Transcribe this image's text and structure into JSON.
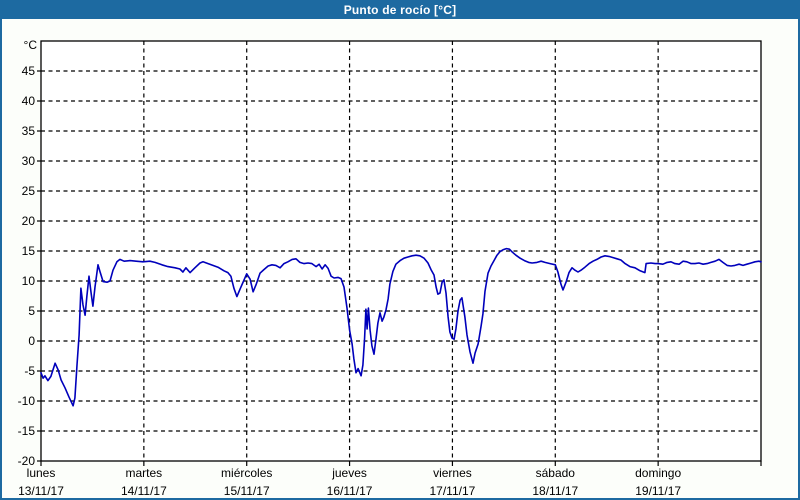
{
  "window": {
    "title": "Punto de rocío [°C]"
  },
  "colors": {
    "title_bar_bg": "#1d6aa1",
    "title_text": "#ffffff",
    "window_border": "#1d6aa1",
    "chart_bg": "#fcfefa",
    "plot_bg": "#ffffff",
    "line": "#0000bb",
    "grid": "#000000",
    "text": "#000000"
  },
  "chart_data": {
    "type": "line",
    "title": "Punto de rocío [°C]",
    "ylabel": "°C",
    "ylim": [
      -20,
      50
    ],
    "yticks": [
      45,
      40,
      35,
      30,
      25,
      20,
      15,
      10,
      5,
      0,
      -5,
      -10,
      -15,
      -20
    ],
    "grid": "dashed",
    "x_unit": "hours_since_monday_00h",
    "xlim": [
      0,
      168
    ],
    "x_axis_ticks_hours": [
      0,
      24,
      48,
      72,
      96,
      120,
      144,
      168
    ],
    "x_day_labels": [
      {
        "hour": 0,
        "day": "lunes",
        "date": "13/11/17"
      },
      {
        "hour": 24,
        "day": "martes",
        "date": "14/11/17"
      },
      {
        "hour": 48,
        "day": "miércoles",
        "date": "15/11/17"
      },
      {
        "hour": 72,
        "day": "jueves",
        "date": "16/11/17"
      },
      {
        "hour": 96,
        "day": "viernes",
        "date": "17/11/17"
      },
      {
        "hour": 120,
        "day": "sábado",
        "date": "18/11/17"
      },
      {
        "hour": 144,
        "day": "domingo",
        "date": "19/11/17"
      }
    ],
    "series": [
      {
        "name": "Punto de rocío",
        "color": "#0000bb",
        "points": [
          [
            0,
            -5.3
          ],
          [
            0.5,
            -6.2
          ],
          [
            0.9,
            -5.8
          ],
          [
            1.6,
            -6.6
          ],
          [
            2.3,
            -5.9
          ],
          [
            3.3,
            -3.7
          ],
          [
            4,
            -4.8
          ],
          [
            4.7,
            -6.5
          ],
          [
            5.6,
            -7.8
          ],
          [
            6.5,
            -9.3
          ],
          [
            7.5,
            -10.8
          ],
          [
            7.9,
            -9.5
          ],
          [
            8.4,
            -4
          ],
          [
            8.9,
            1
          ],
          [
            9.3,
            8.8
          ],
          [
            9.8,
            6
          ],
          [
            10.3,
            4.3
          ],
          [
            10.7,
            7.5
          ],
          [
            11.2,
            10.8
          ],
          [
            11.7,
            8
          ],
          [
            12.1,
            5.8
          ],
          [
            12.6,
            9
          ],
          [
            13.3,
            12.7
          ],
          [
            13.8,
            11.5
          ],
          [
            14.5,
            9.9
          ],
          [
            15.4,
            9.8
          ],
          [
            16.1,
            10
          ],
          [
            16.8,
            11.8
          ],
          [
            17.7,
            13.2
          ],
          [
            18.4,
            13.6
          ],
          [
            19.4,
            13.3
          ],
          [
            20.8,
            13.4
          ],
          [
            22.2,
            13.3
          ],
          [
            23.8,
            13.2
          ],
          [
            25.4,
            13.3
          ],
          [
            26.6,
            13.1
          ],
          [
            28.2,
            12.7
          ],
          [
            29.6,
            12.4
          ],
          [
            31.3,
            12.2
          ],
          [
            32.4,
            12
          ],
          [
            33.1,
            11.5
          ],
          [
            33.8,
            12.2
          ],
          [
            34.8,
            11.4
          ],
          [
            35.9,
            12.2
          ],
          [
            37.1,
            13
          ],
          [
            37.8,
            13.2
          ],
          [
            39,
            12.9
          ],
          [
            40.1,
            12.6
          ],
          [
            41.3,
            12.3
          ],
          [
            42.7,
            11.7
          ],
          [
            43.6,
            11.4
          ],
          [
            44.3,
            10.8
          ],
          [
            45,
            8.8
          ],
          [
            45.7,
            7.4
          ],
          [
            46.4,
            8.6
          ],
          [
            47.4,
            10.2
          ],
          [
            48,
            11.2
          ],
          [
            48.8,
            10.3
          ],
          [
            49.5,
            8.2
          ],
          [
            50.2,
            9.4
          ],
          [
            51.1,
            11.3
          ],
          [
            52,
            11.9
          ],
          [
            53,
            12.5
          ],
          [
            53.9,
            12.7
          ],
          [
            54.8,
            12.6
          ],
          [
            55.8,
            12.2
          ],
          [
            56.7,
            12.9
          ],
          [
            57.6,
            13.2
          ],
          [
            58.6,
            13.6
          ],
          [
            59.5,
            13.7
          ],
          [
            60.4,
            13.1
          ],
          [
            61.4,
            12.9
          ],
          [
            62.3,
            13
          ],
          [
            63.2,
            12.9
          ],
          [
            64.2,
            12.4
          ],
          [
            64.9,
            12.8
          ],
          [
            65.6,
            12
          ],
          [
            66.3,
            12.7
          ],
          [
            67,
            12.1
          ],
          [
            67.7,
            10.8
          ],
          [
            68.4,
            10.5
          ],
          [
            69.3,
            10.6
          ],
          [
            70,
            10.4
          ],
          [
            70.7,
            9
          ],
          [
            71.4,
            5.5
          ],
          [
            72,
            1.8
          ],
          [
            72.6,
            -0.5
          ],
          [
            73,
            -3
          ],
          [
            73.5,
            -5.3
          ],
          [
            74,
            -4.6
          ],
          [
            74.7,
            -5.8
          ],
          [
            75.1,
            -4
          ],
          [
            75.5,
            0.5
          ],
          [
            75.8,
            5.3
          ],
          [
            76.1,
            2
          ],
          [
            76.4,
            5.5
          ],
          [
            76.8,
            1.8
          ],
          [
            77.2,
            -0.8
          ],
          [
            77.7,
            -2.2
          ],
          [
            78.2,
            0.5
          ],
          [
            78.6,
            3
          ],
          [
            79.1,
            4.7
          ],
          [
            79.6,
            3.3
          ],
          [
            80,
            4
          ],
          [
            80.5,
            5.2
          ],
          [
            81,
            7
          ],
          [
            81.4,
            9.5
          ],
          [
            82.1,
            11.6
          ],
          [
            82.8,
            12.8
          ],
          [
            83.8,
            13.4
          ],
          [
            84.7,
            13.8
          ],
          [
            85.6,
            14
          ],
          [
            86.6,
            14.2
          ],
          [
            87.5,
            14.3
          ],
          [
            88.4,
            14.2
          ],
          [
            89.4,
            13.8
          ],
          [
            90.3,
            13
          ],
          [
            91,
            11.9
          ],
          [
            91.7,
            11
          ],
          [
            92.2,
            9
          ],
          [
            92.6,
            7.8
          ],
          [
            93.1,
            8
          ],
          [
            93.6,
            9.8
          ],
          [
            94,
            10.2
          ],
          [
            94.5,
            8
          ],
          [
            95,
            4
          ],
          [
            95.4,
            1.5
          ],
          [
            95.9,
            0.5
          ],
          [
            96.4,
            0.3
          ],
          [
            96.8,
            2
          ],
          [
            97.3,
            5
          ],
          [
            97.8,
            6.8
          ],
          [
            98.2,
            7.2
          ],
          [
            98.9,
            4
          ],
          [
            99.4,
            1
          ],
          [
            100.1,
            -1.8
          ],
          [
            100.8,
            -3.7
          ],
          [
            101.3,
            -2
          ],
          [
            102,
            -0.5
          ],
          [
            102.7,
            2.5
          ],
          [
            103.1,
            4.5
          ],
          [
            103.6,
            8.3
          ],
          [
            104.3,
            11.3
          ],
          [
            105,
            12.5
          ],
          [
            105.7,
            13.4
          ],
          [
            106.4,
            14.3
          ],
          [
            107.1,
            14.9
          ],
          [
            107.8,
            15.2
          ],
          [
            108.6,
            15.4
          ],
          [
            109.3,
            15.3
          ],
          [
            110,
            14.8
          ],
          [
            110.8,
            14.3
          ],
          [
            111.8,
            13.8
          ],
          [
            112.8,
            13.4
          ],
          [
            113.8,
            13.1
          ],
          [
            114.6,
            13
          ],
          [
            115.7,
            13.1
          ],
          [
            116.7,
            13.3
          ],
          [
            117.6,
            13.1
          ],
          [
            118.8,
            12.9
          ],
          [
            120,
            12.7
          ],
          [
            120.6,
            11.5
          ],
          [
            121.3,
            9.5
          ],
          [
            121.8,
            8.5
          ],
          [
            122.5,
            9.8
          ],
          [
            123.2,
            11.4
          ],
          [
            123.9,
            12.2
          ],
          [
            124.6,
            11.8
          ],
          [
            125.3,
            11.5
          ],
          [
            126,
            11.8
          ],
          [
            126.9,
            12.3
          ],
          [
            127.9,
            12.9
          ],
          [
            128.8,
            13.3
          ],
          [
            129.7,
            13.6
          ],
          [
            130.7,
            14
          ],
          [
            131.6,
            14.2
          ],
          [
            132.5,
            14.1
          ],
          [
            133.5,
            13.9
          ],
          [
            134.4,
            13.7
          ],
          [
            135.3,
            13.5
          ],
          [
            136.3,
            12.9
          ],
          [
            137.4,
            12.4
          ],
          [
            138.6,
            12.2
          ],
          [
            139.8,
            11.7
          ],
          [
            140.9,
            11.4
          ],
          [
            141.2,
            12.9
          ],
          [
            142.3,
            13
          ],
          [
            143.3,
            12.9
          ],
          [
            144,
            12.9
          ],
          [
            145.1,
            12.8
          ],
          [
            146.1,
            13.1
          ],
          [
            147,
            13.2
          ],
          [
            147.9,
            12.9
          ],
          [
            148.9,
            12.8
          ],
          [
            149.8,
            13.3
          ],
          [
            150.7,
            13.2
          ],
          [
            151.7,
            12.9
          ],
          [
            152.6,
            12.9
          ],
          [
            153.5,
            13
          ],
          [
            154.5,
            12.8
          ],
          [
            155.4,
            12.9
          ],
          [
            156.3,
            13.1
          ],
          [
            157.3,
            13.3
          ],
          [
            158.2,
            13.6
          ],
          [
            159.1,
            13.1
          ],
          [
            160.1,
            12.6
          ],
          [
            161,
            12.5
          ],
          [
            161.9,
            12.6
          ],
          [
            162.9,
            12.8
          ],
          [
            163.8,
            12.6
          ],
          [
            164.7,
            12.8
          ],
          [
            165.7,
            13
          ],
          [
            166.6,
            13.2
          ],
          [
            167.5,
            13.3
          ],
          [
            168,
            13.2
          ]
        ]
      }
    ]
  }
}
